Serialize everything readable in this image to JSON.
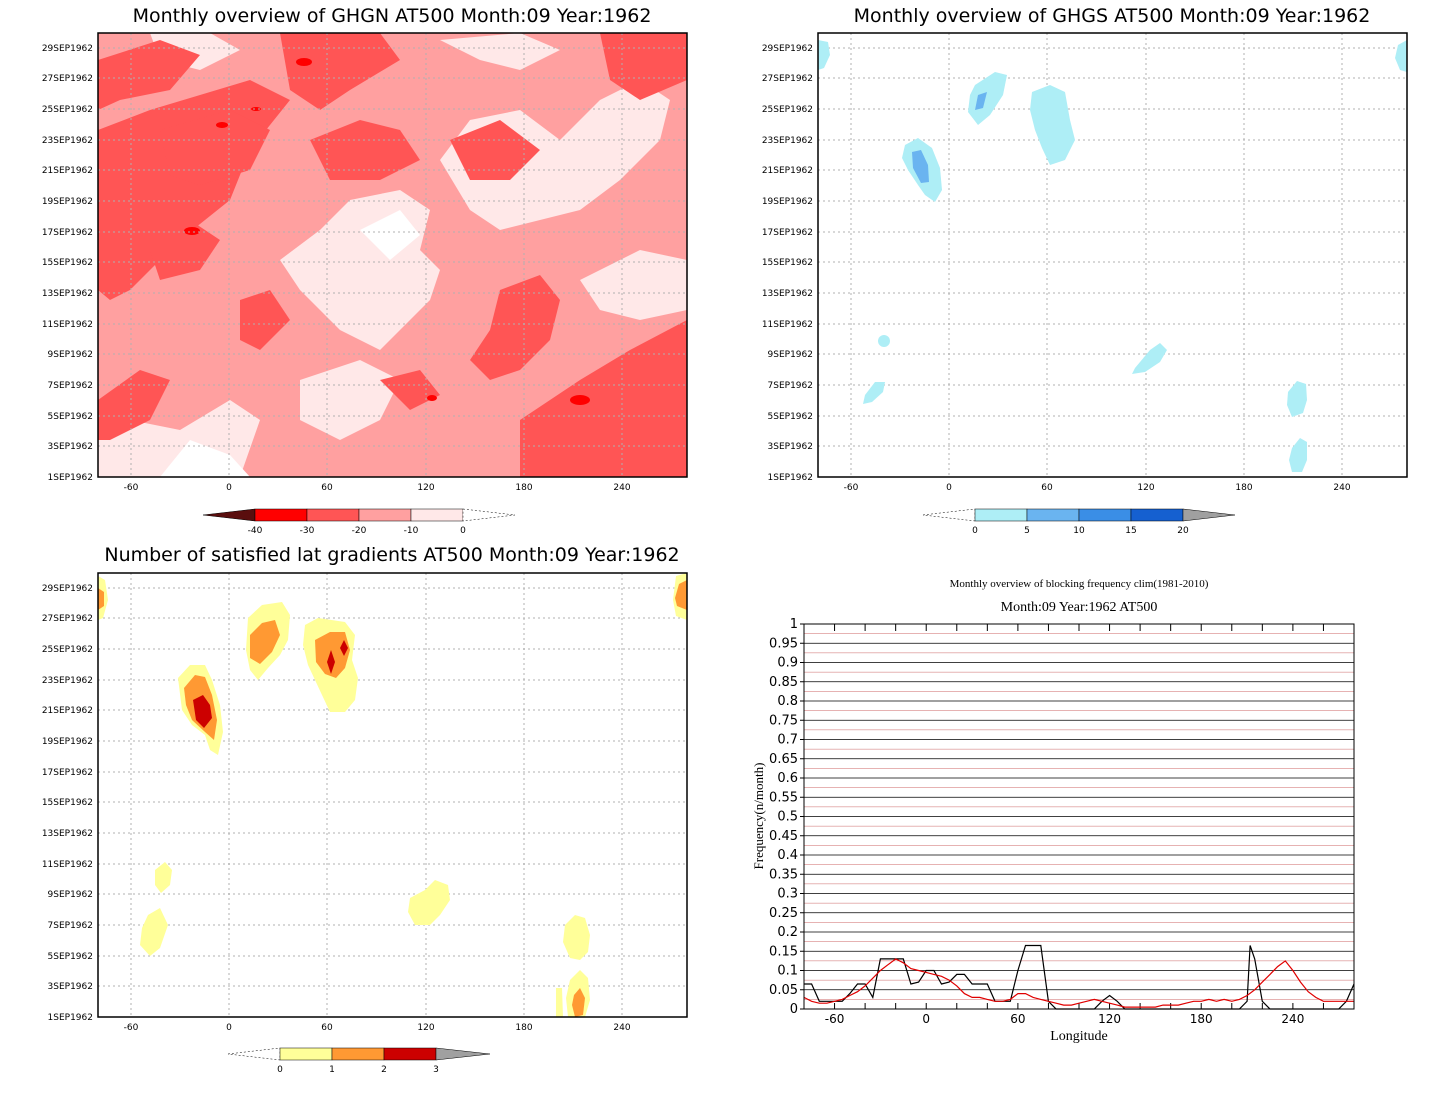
{
  "panels": {
    "ghgn": {
      "title": "Monthly overview of GHGN AT500 Month:09 Year:1962",
      "date_ticks": [
        "1SEP1962",
        "3SEP1962",
        "5SEP1962",
        "7SEP1962",
        "9SEP1962",
        "11SEP1962",
        "13SEP1962",
        "15SEP1962",
        "17SEP1962",
        "19SEP1962",
        "21SEP1962",
        "23SEP1962",
        "25SEP1962",
        "27SEP1962",
        "29SEP1962"
      ],
      "lon_ticks": [
        "-60",
        "0",
        "60",
        "120",
        "180",
        "240"
      ],
      "colorbar": {
        "labels": [
          "-40",
          "-30",
          "-20",
          "-10",
          "0"
        ],
        "colors": [
          "#5a0e0e",
          "#ff0000",
          "#ff3333",
          "#ff6666",
          "#ffa0a0",
          "#ffe8e8"
        ]
      }
    },
    "ghgs": {
      "title": "Monthly overview of GHGS AT500 Month:09 Year:1962",
      "date_ticks": [
        "1SEP1962",
        "3SEP1962",
        "5SEP1962",
        "7SEP1962",
        "9SEP1962",
        "11SEP1962",
        "13SEP1962",
        "15SEP1962",
        "17SEP1962",
        "19SEP1962",
        "21SEP1962",
        "23SEP1962",
        "25SEP1962",
        "27SEP1962",
        "29SEP1962"
      ],
      "lon_ticks": [
        "-60",
        "0",
        "60",
        "120",
        "180",
        "240"
      ],
      "colorbar": {
        "labels": [
          "0",
          "5",
          "10",
          "15",
          "20"
        ],
        "colors": [
          "#aeeef6",
          "#6ab4f0",
          "#3a8ee6",
          "#1560d0",
          "#a0a0a0"
        ]
      }
    },
    "lat_gradients": {
      "title": "Number of satisfied lat gradients AT500 Month:09 Year:1962",
      "date_ticks": [
        "1SEP1962",
        "3SEP1962",
        "5SEP1962",
        "7SEP1962",
        "9SEP1962",
        "11SEP1962",
        "13SEP1962",
        "15SEP1962",
        "17SEP1962",
        "19SEP1962",
        "21SEP1962",
        "23SEP1962",
        "25SEP1962",
        "27SEP1962",
        "29SEP1962"
      ],
      "lon_ticks": [
        "-60",
        "0",
        "60",
        "120",
        "180",
        "240"
      ],
      "colorbar": {
        "labels": [
          "0",
          "1",
          "2",
          "3"
        ],
        "colors": [
          "#ffff99",
          "#ff9933",
          "#cc0000",
          "#a0a0a0"
        ]
      }
    },
    "blocking": {
      "title": "Monthly overview of blocking frequency clim(1981-2010)",
      "subtitle": "Month:09 Year:1962  AT500",
      "xlabel": "Longitude",
      "ylabel": "Frequency(n/month)",
      "y_ticks": [
        "0",
        "0.05",
        "0.1",
        "0.15",
        "0.2",
        "0.25",
        "0.3",
        "0.35",
        "0.4",
        "0.45",
        "0.5",
        "0.55",
        "0.6",
        "0.65",
        "0.7",
        "0.75",
        "0.8",
        "0.85",
        "0.9",
        "0.95",
        "1"
      ],
      "x_ticks": [
        "-60",
        "0",
        "60",
        "120",
        "180",
        "240"
      ]
    }
  },
  "chart_data": [
    {
      "type": "heatmap",
      "title": "Monthly overview of GHGN AT500 Month:09 Year:1962",
      "xlim": [
        -80,
        280
      ],
      "ylim": [
        "1SEP1962",
        "30SEP1962"
      ],
      "color_levels": [
        -40,
        -30,
        -20,
        -10,
        0
      ]
    },
    {
      "type": "heatmap",
      "title": "Monthly overview of GHGS AT500 Month:09 Year:1962",
      "xlim": [
        -80,
        280
      ],
      "ylim": [
        "1SEP1962",
        "30SEP1962"
      ],
      "color_levels": [
        0,
        5,
        10,
        15,
        20
      ],
      "features": [
        {
          "lon": -80,
          "date": "29SEP1962",
          "level": 0
        },
        {
          "lon": 20,
          "date": "26SEP1962",
          "level": 5
        },
        {
          "lon": 60,
          "date": "24SEP1962",
          "level": 0
        },
        {
          "lon": -20,
          "date": "21SEP1962",
          "level": 5
        },
        {
          "lon": 275,
          "date": "29SEP1962",
          "level": 0
        },
        {
          "lon": -40,
          "date": "10SEP1962",
          "level": 0
        },
        {
          "lon": 125,
          "date": "9SEP1962",
          "level": 0
        },
        {
          "lon": -45,
          "date": "6SEP1962",
          "level": 0
        },
        {
          "lon": 215,
          "date": "5SEP1962",
          "level": 0
        },
        {
          "lon": 215,
          "date": "2SEP1962",
          "level": 0
        }
      ]
    },
    {
      "type": "heatmap",
      "title": "Number of satisfied lat gradients AT500 Month:09 Year:1962",
      "xlim": [
        -80,
        280
      ],
      "ylim": [
        "1SEP1962",
        "30SEP1962"
      ],
      "color_levels": [
        0,
        1,
        2,
        3
      ],
      "features": [
        {
          "lon": -18,
          "date": "21SEP1962",
          "level": 2
        },
        {
          "lon": 22,
          "date": "26SEP1962",
          "level": 1
        },
        {
          "lon": 65,
          "date": "25SEP1962",
          "level": 2
        },
        {
          "lon": -78,
          "date": "29SEP1962",
          "level": 1
        },
        {
          "lon": 278,
          "date": "29SEP1962",
          "level": 1
        },
        {
          "lon": -40,
          "date": "10SEP1962",
          "level": 0
        },
        {
          "lon": -48,
          "date": "7SEP1962",
          "level": 0
        },
        {
          "lon": 125,
          "date": "9SEP1962",
          "level": 0
        },
        {
          "lon": 213,
          "date": "6SEP1962",
          "level": 0
        },
        {
          "lon": 213,
          "date": "2SEP1962",
          "level": 1
        }
      ]
    },
    {
      "type": "line",
      "title": "Monthly overview of blocking frequency clim(1981-2010)",
      "subtitle": "Month:09 Year:1962  AT500",
      "xlabel": "Longitude",
      "ylabel": "Frequency(n/month)",
      "xlim": [
        -80,
        280
      ],
      "ylim": [
        0,
        1
      ],
      "grid": true,
      "series": [
        {
          "color": "#000000",
          "x": [
            -80,
            -75,
            -70,
            -65,
            -60,
            -55,
            -50,
            -45,
            -40,
            -35,
            -30,
            -25,
            -20,
            -15,
            -10,
            -5,
            0,
            5,
            10,
            15,
            20,
            25,
            30,
            35,
            40,
            45,
            50,
            55,
            60,
            65,
            70,
            75,
            80,
            85,
            90,
            95,
            100,
            105,
            110,
            115,
            120,
            125,
            130,
            135,
            140,
            145,
            150,
            155,
            160,
            165,
            170,
            175,
            180,
            185,
            190,
            195,
            200,
            205,
            210,
            212,
            215,
            220,
            225,
            230,
            235,
            240,
            245,
            250,
            255,
            260,
            265,
            270,
            275,
            280
          ],
          "values": [
            0.065,
            0.065,
            0.02,
            0.02,
            0.02,
            0.02,
            0.04,
            0.065,
            0.065,
            0.03,
            0.13,
            0.13,
            0.13,
            0.13,
            0.065,
            0.07,
            0.1,
            0.1,
            0.065,
            0.07,
            0.09,
            0.09,
            0.065,
            0.065,
            0.065,
            0.02,
            0.02,
            0.02,
            0.1,
            0.165,
            0.165,
            0.165,
            0.02,
            0.0,
            0.0,
            0.0,
            0.0,
            0.0,
            0.0,
            0.02,
            0.035,
            0.02,
            0.0,
            0.0,
            0.0,
            0.0,
            0.0,
            0.0,
            0.0,
            0.0,
            0.0,
            0.0,
            0.0,
            0.0,
            0.0,
            0.0,
            0.0,
            0.0,
            0.02,
            0.165,
            0.13,
            0.02,
            0.0,
            0.0,
            0.0,
            0.0,
            0.0,
            0.0,
            0.0,
            0.0,
            0.0,
            0.0,
            0.02,
            0.065
          ]
        },
        {
          "color": "#e00000",
          "x": [
            -80,
            -75,
            -70,
            -65,
            -60,
            -55,
            -50,
            -45,
            -40,
            -35,
            -30,
            -25,
            -20,
            -15,
            -10,
            -5,
            0,
            5,
            10,
            15,
            20,
            25,
            30,
            35,
            40,
            45,
            50,
            55,
            60,
            65,
            70,
            75,
            80,
            85,
            90,
            95,
            100,
            105,
            110,
            115,
            120,
            125,
            130,
            135,
            140,
            145,
            150,
            155,
            160,
            165,
            170,
            175,
            180,
            185,
            190,
            195,
            200,
            205,
            210,
            215,
            220,
            225,
            230,
            235,
            240,
            245,
            250,
            255,
            260,
            265,
            270,
            275,
            280
          ],
          "values": [
            0.03,
            0.02,
            0.015,
            0.015,
            0.02,
            0.025,
            0.035,
            0.045,
            0.06,
            0.08,
            0.1,
            0.115,
            0.13,
            0.12,
            0.105,
            0.1,
            0.095,
            0.09,
            0.085,
            0.075,
            0.06,
            0.04,
            0.03,
            0.03,
            0.025,
            0.02,
            0.02,
            0.025,
            0.04,
            0.04,
            0.03,
            0.025,
            0.02,
            0.015,
            0.01,
            0.01,
            0.015,
            0.02,
            0.025,
            0.02,
            0.015,
            0.01,
            0.005,
            0.005,
            0.005,
            0.005,
            0.005,
            0.01,
            0.01,
            0.01,
            0.015,
            0.02,
            0.02,
            0.025,
            0.02,
            0.025,
            0.02,
            0.025,
            0.035,
            0.05,
            0.07,
            0.09,
            0.11,
            0.125,
            0.1,
            0.07,
            0.045,
            0.03,
            0.02,
            0.02,
            0.02,
            0.02,
            0.02
          ]
        }
      ]
    }
  ]
}
